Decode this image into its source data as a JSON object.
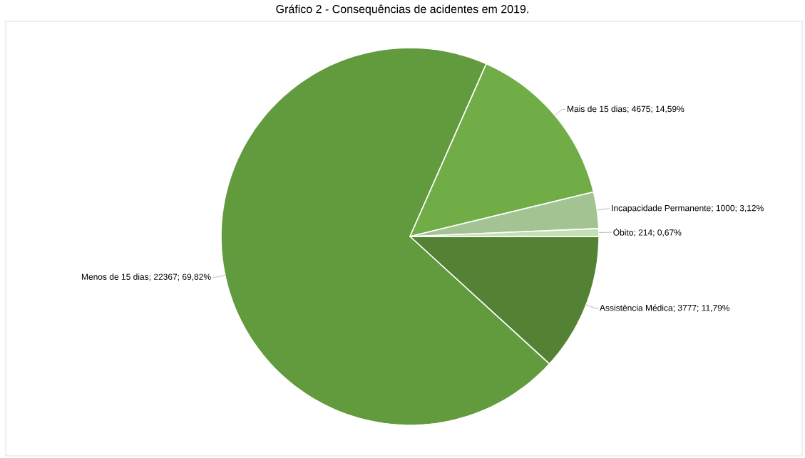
{
  "chart_data": {
    "type": "pie",
    "title": "Gráfico 2 - Consequências de acidentes em 2019.",
    "categories": [
      "Assistência Médica",
      "Menos de 15 dias",
      "Mais de 15 dias",
      "Incapacidade Permanente",
      "Óbito"
    ],
    "values": [
      3777,
      22367,
      4675,
      1000,
      214
    ],
    "value_labels": [
      "; 3777; 11,79%",
      "; 22367; 69,82%",
      "; 4675; 14,59%",
      "; 1000; 3,12%",
      "; 214; 0,67%"
    ],
    "colors": [
      "#548235",
      "#629a3e",
      "#70ad47",
      "#a3c492",
      "#c5dfb4"
    ]
  }
}
